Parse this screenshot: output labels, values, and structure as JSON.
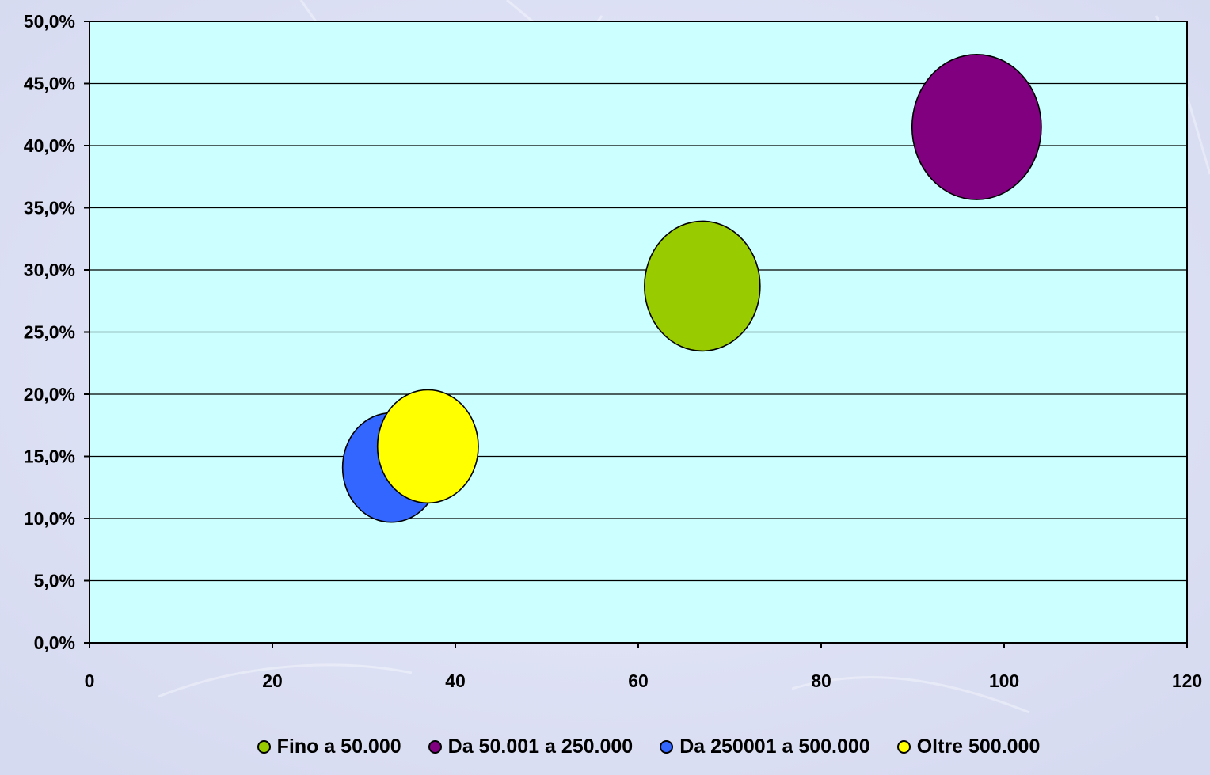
{
  "chart_data": {
    "type": "bubble",
    "title": "",
    "xlabel": "",
    "ylabel": "",
    "xlim": [
      0,
      120
    ],
    "ylim": [
      0,
      0.5
    ],
    "x_ticks": [
      0,
      20,
      40,
      60,
      80,
      100,
      120
    ],
    "x_tick_labels": [
      "0",
      "20",
      "40",
      "60",
      "80",
      "100",
      "120"
    ],
    "y_ticks": [
      0,
      0.05,
      0.1,
      0.15,
      0.2,
      0.25,
      0.3,
      0.35,
      0.4,
      0.45,
      0.5
    ],
    "y_tick_labels": [
      "0,0%",
      "5,0%",
      "10,0%",
      "15,0%",
      "20,0%",
      "25,0%",
      "30,0%",
      "35,0%",
      "40,0%",
      "45,0%",
      "50,0%"
    ],
    "grid": "horizontal",
    "legend_position": "bottom",
    "plot_background": "#ccffff",
    "series": [
      {
        "name": "Fino a 50.000",
        "color": "#99cc00",
        "x": 67,
        "y": 0.287,
        "size": 1.0
      },
      {
        "name": "Da 50.001 a 250.000",
        "color": "#800080",
        "x": 97,
        "y": 0.415,
        "size": 1.25
      },
      {
        "name": "Da 250001 a 500.000",
        "color": "#3366ff",
        "x": 33,
        "y": 0.141,
        "size": 0.71
      },
      {
        "name": "Oltre 500.000",
        "color": "#ffff00",
        "x": 37,
        "y": 0.158,
        "size": 0.76
      }
    ]
  }
}
